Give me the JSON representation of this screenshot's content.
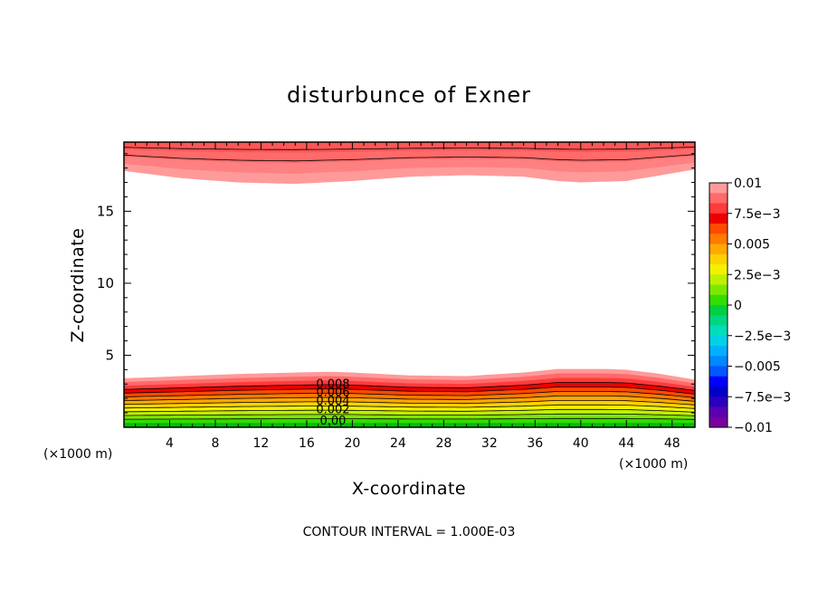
{
  "chart_data": {
    "type": "contour",
    "title": "disturbunce of Exner",
    "xlabel": "X-coordinate",
    "ylabel": "Z-coordinate",
    "x_unit": "(×1000 m)",
    "y_unit": "(×1000 m)",
    "xlim": [
      0,
      50
    ],
    "ylim": [
      0,
      19.8
    ],
    "x_ticks": [
      4,
      8,
      12,
      16,
      20,
      24,
      28,
      32,
      36,
      40,
      44,
      48
    ],
    "y_ticks": [
      5,
      10,
      15
    ],
    "footer": "CONTOUR INTERVAL = 1.000E-03",
    "grid": false,
    "contour_interval": 0.001,
    "contour_labels": [
      "0.008",
      "0.006",
      "0.004",
      "0.002",
      "0.00"
    ],
    "lower_layer": {
      "x": [
        0,
        5,
        10,
        15,
        18,
        20,
        25,
        30,
        35,
        38,
        42,
        44,
        47,
        50
      ],
      "top_z": [
        3.4,
        3.55,
        3.7,
        3.8,
        3.85,
        3.8,
        3.6,
        3.55,
        3.8,
        4.05,
        4.05,
        4.0,
        3.7,
        3.3
      ],
      "bottom_z": 0.3
    },
    "upper_layer": {
      "x": [
        0,
        5,
        10,
        15,
        20,
        25,
        30,
        35,
        38,
        40,
        44,
        47,
        50
      ],
      "bottom_z": [
        17.8,
        17.3,
        17.0,
        16.9,
        17.1,
        17.4,
        17.5,
        17.4,
        17.1,
        17.0,
        17.1,
        17.5,
        17.9
      ],
      "top_z": 19.8
    },
    "colorbar": {
      "labels": [
        "0.01",
        "7.5e-3",
        "0.005",
        "2.5e-3",
        "0",
        "-2.5e-3",
        "-0.005",
        "-7.5e-3",
        "-0.01"
      ],
      "range": [
        -0.01,
        0.01
      ],
      "colors": [
        "#ff9a9a",
        "#ff6a6a",
        "#ff3b3b",
        "#ee0000",
        "#ff4a00",
        "#ff7a00",
        "#ffa800",
        "#ffd200",
        "#f2f200",
        "#bff000",
        "#7ce800",
        "#33dd00",
        "#00d040",
        "#00d680",
        "#00ddbb",
        "#00d2e6",
        "#00b0ff",
        "#0088ff",
        "#0058ff",
        "#0000ff",
        "#0000cc",
        "#2a00c0",
        "#5a00b0",
        "#7a00a0"
      ]
    }
  }
}
